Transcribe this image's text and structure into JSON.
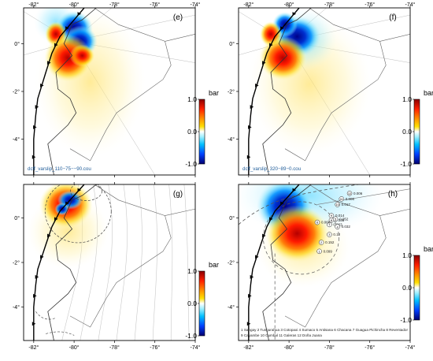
{
  "axis_labels": {
    "x": [
      "-82°",
      "-80°",
      "-78°",
      "-76°",
      "-74°"
    ],
    "y": [
      "0°",
      "-2°",
      "-4°"
    ]
  },
  "colorbar": {
    "unit": "bar",
    "ticks": [
      "1.0",
      "0.0",
      "-1.0"
    ]
  },
  "panels": [
    {
      "id": "e",
      "letter": "(e)",
      "caption": "dcff_varslip_110−75−−90.cou"
    },
    {
      "id": "f",
      "letter": "(f)",
      "caption": "dcff_varslip_320−89−0.cou"
    },
    {
      "id": "g",
      "letter": "(g)",
      "caption": ""
    },
    {
      "id": "h",
      "letter": "(h)",
      "caption": "1 Sangay 2 Tungurahua 3 Cotopaxi 4 Sumaco 5 Antisana 6 Chacana 7 Guagua Pichincha 8 Reventador\n9 Cayambe 10 Cumbal 11 Galeras 12 Doña Juana"
    }
  ],
  "volcano_markers": [
    {
      "num": "12",
      "value": "0.006"
    },
    {
      "num": "11",
      "value": "0.006"
    },
    {
      "num": "10",
      "value": "0.017"
    },
    {
      "num": "9",
      "value": "0.014"
    },
    {
      "num": "8",
      "value": "0.036"
    },
    {
      "num": "7",
      "value": "0.063"
    },
    {
      "num": "6",
      "value": "0.066"
    },
    {
      "num": "5",
      "value": "0.052"
    },
    {
      "num": "4",
      "value": "0.032"
    },
    {
      "num": "3",
      "value": "0.12"
    },
    {
      "num": "2",
      "value": "0.152"
    },
    {
      "num": "1",
      "value": "0.099"
    }
  ],
  "colors": {
    "positive_max": "#8b0000",
    "positive": "#ff2000",
    "neutral": "#ffffff",
    "negative": "#00a0ff",
    "negative_max": "#00006e",
    "trench": "#000000",
    "coastline": "#333333",
    "caption_text": "#1f5c99"
  }
}
